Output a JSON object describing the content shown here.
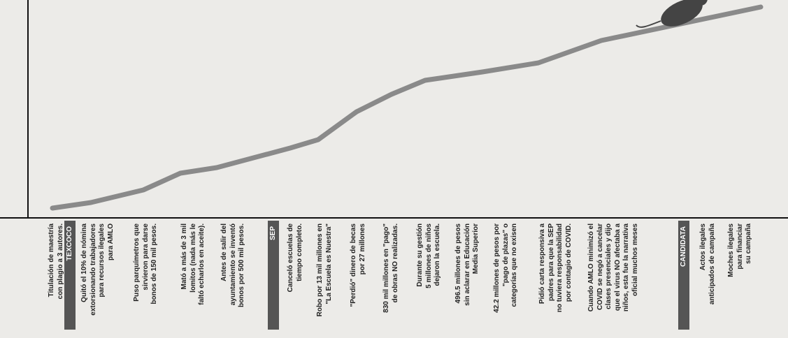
{
  "timeline": {
    "items": [
      {
        "lines": [
          "Titulación de maestría",
          "con plagio a 3 autores."
        ]
      },
      {
        "tag": "TEXCOCO"
      },
      {
        "lines": [
          "Quitó el 10% de nómina",
          "extorsionando trabajadores",
          "para recursos ilegales",
          "para AMLO"
        ]
      },
      {
        "lines": [
          "Puso parquímetros que",
          "sirvieron para darse",
          "bonos de 150 mil pesos."
        ]
      },
      {
        "lines": [
          "Mató a más de 3 mil",
          "lomitos (nada más le",
          "faltó echarlos en aceite)."
        ]
      },
      {
        "lines": [
          "Antes de salir del",
          "ayuntamiento se inventó",
          "bonos por 500 mil pesos."
        ]
      },
      {
        "tag": "SEP"
      },
      {
        "lines": [
          "Canceló escuelas de",
          "tiempo completo."
        ]
      },
      {
        "lines": [
          "Robo por 13 mil millones en",
          "\"La Escuela es Nuestra\""
        ]
      },
      {
        "lines": [
          "\"Perdió\" dinero de becas",
          "por 27 millones"
        ]
      },
      {
        "lines": [
          "830 mil millones en \"pago\"",
          "de obras NO realizadas."
        ]
      },
      {
        "lines": [
          "Durante su gestión",
          "5 millones de niños",
          "dejaron la escuela."
        ]
      },
      {
        "lines": [
          "496.5 millones de pesos",
          "sin aclarar en Educación",
          "Media Superior"
        ]
      },
      {
        "lines": [
          "42.2 millones de pesos por",
          "\"pago de plazas\" o",
          "categorías que no exisen"
        ]
      },
      {
        "lines": [
          "Pidió carta responsiva a",
          "padres para que la SEP",
          "no tuviera responsabilidad",
          "por contagio de COVID."
        ]
      },
      {
        "lines": [
          "Cuando AMLO minimizó el",
          "COVID se negó a cancelar",
          "clases presenciales y dijo",
          "que el virus NO afectaba a",
          "niños, esta fue la narrativa",
          "oficial muchos meses"
        ]
      },
      {
        "tag": "CANDIDATA"
      },
      {
        "lines": [
          "Actos ilegales",
          "anticipados de campaña"
        ]
      },
      {
        "lines": [
          "Moches ilegales",
          "para financiar",
          "su campaña"
        ]
      }
    ]
  }
}
